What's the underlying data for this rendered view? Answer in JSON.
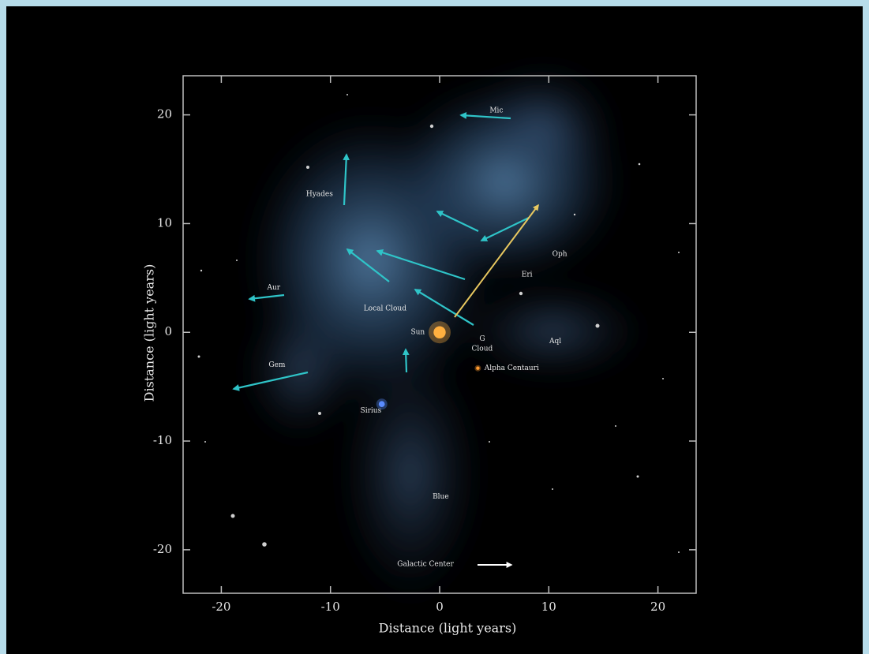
{
  "chart_data": {
    "type": "scatter",
    "x_label": "Distance  (light years)",
    "y_label": "Distance  (light years)",
    "xlim": [
      -23.5,
      23.5
    ],
    "ylim": [
      -24,
      23.6
    ],
    "xticks": [
      -20,
      -10,
      0,
      10,
      20
    ],
    "yticks": [
      -20,
      -10,
      0,
      10,
      20
    ],
    "points": [
      {
        "x": 0,
        "y": 0,
        "color": "#ffb040"
      },
      {
        "x": 3.5,
        "y": -3.3,
        "color": "#ff9a30"
      },
      {
        "x": -5.3,
        "y": -6.6,
        "color": "#5a8cff"
      }
    ],
    "annotations": [
      {
        "text": "Mic",
        "x": 5.2,
        "y": 20.4
      },
      {
        "text": "Hyades",
        "x": -11,
        "y": 12.7
      },
      {
        "text": "Aur",
        "x": -15.2,
        "y": 4.1
      },
      {
        "text": "Gem",
        "x": -14.9,
        "y": -3
      },
      {
        "text": "Local Cloud",
        "x": -5,
        "y": 2.2
      },
      {
        "text": "Sun",
        "x": -2,
        "y": 0
      },
      {
        "text": "G",
        "x": 3.9,
        "y": -0.6
      },
      {
        "text": "Cloud",
        "x": 3.9,
        "y": -1.5
      },
      {
        "text": "Eri",
        "x": 8,
        "y": 5.3
      },
      {
        "text": "Oph",
        "x": 11,
        "y": 7.2
      },
      {
        "text": "Aql",
        "x": 10.6,
        "y": -0.8
      },
      {
        "text": "Alpha Centauri",
        "x": 6.6,
        "y": -3.3
      },
      {
        "text": "Sirius",
        "x": -6.3,
        "y": -7.2
      },
      {
        "text": "Blue",
        "x": 0.1,
        "y": -15.1
      },
      {
        "text": "Galactic Center",
        "x": -1.3,
        "y": -21.3
      }
    ]
  }
}
